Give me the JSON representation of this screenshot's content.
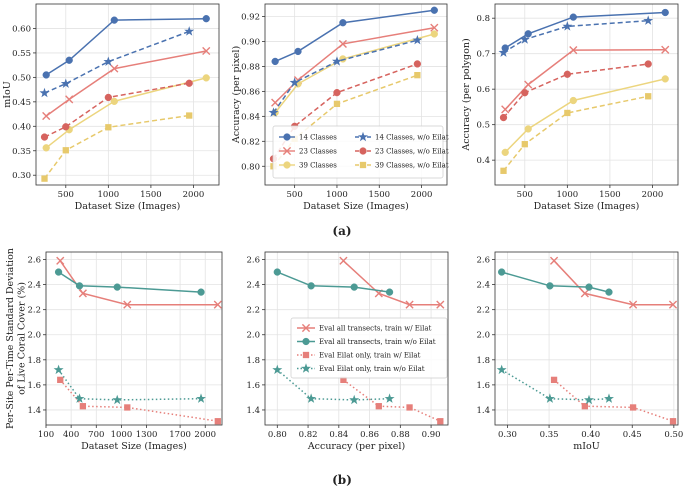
{
  "caption_a": "(a)",
  "caption_b": "(b)",
  "colors": {
    "blue": "#4a72b0",
    "red": "#e67f7a",
    "teal": "#4c9a94",
    "yellow": "#ecd57e",
    "crimson": "#d6635e",
    "gold": "#e7c96b"
  },
  "chart_data": [
    {
      "type": "line",
      "xlabel": "Dataset Size (Images)",
      "ylabel": "mIoU",
      "xlim": [
        150,
        2300
      ],
      "ylim": [
        0.28,
        0.65
      ],
      "xticks": [
        500,
        1000,
        1500,
        2000
      ],
      "yticks": [
        0.3,
        0.35,
        0.4,
        0.45,
        0.5,
        0.55,
        0.6
      ],
      "ytick_labels": [
        "0.30",
        "0.35",
        "0.40",
        "0.45",
        "0.50",
        "0.55",
        "0.60"
      ],
      "series": [
        {
          "name": "14 Classes",
          "color": "blue",
          "marker": "circle",
          "dash": false,
          "x": [
            270,
            540,
            1070,
            2150
          ],
          "y": [
            0.505,
            0.535,
            0.617,
            0.62
          ]
        },
        {
          "name": "23 Classes",
          "color": "red",
          "marker": "x",
          "dash": false,
          "x": [
            270,
            540,
            1070,
            2150
          ],
          "y": [
            0.421,
            0.455,
            0.518,
            0.554
          ]
        },
        {
          "name": "39 Classes",
          "color": "yellow",
          "marker": "circle",
          "dash": false,
          "x": [
            270,
            540,
            1070,
            2150
          ],
          "y": [
            0.356,
            0.393,
            0.451,
            0.499
          ]
        },
        {
          "name": "14 Classes, w/o Eilat",
          "color": "blue",
          "marker": "star",
          "dash": true,
          "x": [
            250,
            500,
            1000,
            1950
          ],
          "y": [
            0.468,
            0.487,
            0.532,
            0.594
          ]
        },
        {
          "name": "23 Classes, w/o Eilat",
          "color": "crimson",
          "marker": "circle",
          "dash": true,
          "x": [
            250,
            500,
            1000,
            1950
          ],
          "y": [
            0.378,
            0.399,
            0.459,
            0.488
          ]
        },
        {
          "name": "39 Classes, w/o Eilat",
          "color": "gold",
          "marker": "square",
          "dash": true,
          "x": [
            250,
            500,
            1000,
            1950
          ],
          "y": [
            0.293,
            0.351,
            0.398,
            0.422
          ]
        }
      ]
    },
    {
      "type": "line",
      "xlabel": "Dataset Size (Images)",
      "ylabel": "Accuracy (per pixel)",
      "xlim": [
        150,
        2300
      ],
      "ylim": [
        0.785,
        0.93
      ],
      "xticks": [
        500,
        1000,
        1500,
        2000
      ],
      "yticks": [
        0.8,
        0.82,
        0.84,
        0.86,
        0.88,
        0.9,
        0.92
      ],
      "ytick_labels": [
        "0.80",
        "0.82",
        "0.84",
        "0.86",
        "0.88",
        "0.90",
        "0.92"
      ],
      "legend": [
        "14 Classes",
        "23 Classes",
        "39 Classes",
        "14 Classes, w/o Eilat",
        "23 Classes, w/o Eilat",
        "39 Classes, w/o Eilat"
      ],
      "series": [
        {
          "name": "14 Classes",
          "color": "blue",
          "marker": "circle",
          "dash": false,
          "x": [
            270,
            540,
            1070,
            2150
          ],
          "y": [
            0.884,
            0.892,
            0.915,
            0.925
          ]
        },
        {
          "name": "23 Classes",
          "color": "red",
          "marker": "x",
          "dash": false,
          "x": [
            270,
            540,
            1070,
            2150
          ],
          "y": [
            0.851,
            0.869,
            0.898,
            0.911
          ]
        },
        {
          "name": "39 Classes",
          "color": "yellow",
          "marker": "circle",
          "dash": false,
          "x": [
            270,
            540,
            1070,
            2150
          ],
          "y": [
            0.843,
            0.866,
            0.886,
            0.906
          ]
        },
        {
          "name": "14 Classes, w/o Eilat",
          "color": "blue",
          "marker": "star",
          "dash": true,
          "x": [
            250,
            500,
            1000,
            1950
          ],
          "y": [
            0.843,
            0.867,
            0.884,
            0.901
          ]
        },
        {
          "name": "23 Classes, w/o Eilat",
          "color": "crimson",
          "marker": "circle",
          "dash": true,
          "x": [
            250,
            500,
            1000,
            1950
          ],
          "y": [
            0.806,
            0.832,
            0.859,
            0.882
          ]
        },
        {
          "name": "39 Classes, w/o Eilat",
          "color": "gold",
          "marker": "square",
          "dash": true,
          "x": [
            250,
            500,
            1000,
            1950
          ],
          "y": [
            0.8,
            0.822,
            0.85,
            0.873
          ]
        }
      ]
    },
    {
      "type": "line",
      "xlabel": "Dataset Size (Images)",
      "ylabel": "Accuracy (per polygon)",
      "xlim": [
        150,
        2300
      ],
      "ylim": [
        0.33,
        0.84
      ],
      "xticks": [
        500,
        1000,
        1500,
        2000
      ],
      "yticks": [
        0.4,
        0.5,
        0.6,
        0.7,
        0.8
      ],
      "ytick_labels": [
        "0.4",
        "0.5",
        "0.6",
        "0.7",
        "0.8"
      ],
      "series": [
        {
          "name": "14 Classes",
          "color": "blue",
          "marker": "circle",
          "dash": false,
          "x": [
            270,
            540,
            1070,
            2150
          ],
          "y": [
            0.716,
            0.756,
            0.803,
            0.816
          ]
        },
        {
          "name": "23 Classes",
          "color": "red",
          "marker": "x",
          "dash": false,
          "x": [
            270,
            540,
            1070,
            2150
          ],
          "y": [
            0.543,
            0.613,
            0.71,
            0.711
          ]
        },
        {
          "name": "39 Classes",
          "color": "yellow",
          "marker": "circle",
          "dash": false,
          "x": [
            270,
            540,
            1070,
            2150
          ],
          "y": [
            0.422,
            0.488,
            0.568,
            0.629
          ]
        },
        {
          "name": "14 Classes, w/o Eilat",
          "color": "blue",
          "marker": "star",
          "dash": true,
          "x": [
            250,
            500,
            1000,
            1950
          ],
          "y": [
            0.703,
            0.74,
            0.777,
            0.793
          ]
        },
        {
          "name": "23 Classes, w/o Eilat",
          "color": "crimson",
          "marker": "circle",
          "dash": true,
          "x": [
            250,
            500,
            1000,
            1950
          ],
          "y": [
            0.52,
            0.59,
            0.642,
            0.671
          ]
        },
        {
          "name": "39 Classes, w/o Eilat",
          "color": "gold",
          "marker": "square",
          "dash": true,
          "x": [
            250,
            500,
            1000,
            1950
          ],
          "y": [
            0.37,
            0.445,
            0.533,
            0.58
          ]
        }
      ]
    },
    {
      "type": "line",
      "xlabel": "Dataset Size (Images)",
      "ylabel": "Per-Site Per-Time Standard Deviation of Live Coral Cover (%)",
      "xlim": [
        100,
        2200
      ],
      "ylim": [
        1.28,
        2.66
      ],
      "xticks": [
        100,
        400,
        700,
        1000,
        1300,
        1700,
        2000
      ],
      "xtick_labels": [
        "100",
        "400",
        "700",
        "1000",
        "1300",
        "1700",
        "2000"
      ],
      "yticks": [
        1.4,
        1.6,
        1.8,
        2.0,
        2.2,
        2.4,
        2.6
      ],
      "ytick_labels": [
        "1.4",
        "1.6",
        "1.8",
        "2.0",
        "2.2",
        "2.4",
        "2.6"
      ],
      "series": [
        {
          "name": "Eval all transects, train w/ Eilat",
          "color": "red",
          "marker": "x",
          "dash": false,
          "x": [
            270,
            540,
            1070,
            2150
          ],
          "y": [
            2.59,
            2.33,
            2.24,
            2.24
          ]
        },
        {
          "name": "Eval all transects, train w/o Eilat",
          "color": "teal",
          "marker": "circle",
          "dash": false,
          "x": [
            250,
            500,
            950,
            1950
          ],
          "y": [
            2.5,
            2.39,
            2.38,
            2.34
          ]
        },
        {
          "name": "Eval Eilat only, train w/ Eilat",
          "color": "red",
          "marker": "square",
          "dash": true,
          "x": [
            270,
            540,
            1070,
            2150
          ],
          "y": [
            1.64,
            1.43,
            1.42,
            1.31
          ]
        },
        {
          "name": "Eval Eilat only, train w/o Eilat",
          "color": "teal",
          "marker": "star",
          "dash": true,
          "x": [
            250,
            500,
            950,
            1950
          ],
          "y": [
            1.72,
            1.49,
            1.48,
            1.49
          ]
        }
      ]
    },
    {
      "type": "line",
      "xlabel": "Accuracy (per pixel)",
      "ylabel": "",
      "xlim": [
        0.792,
        0.911
      ],
      "ylim": [
        1.28,
        2.66
      ],
      "xticks": [
        0.8,
        0.82,
        0.84,
        0.86,
        0.88,
        0.9
      ],
      "xtick_labels": [
        "0.80",
        "0.82",
        "0.84",
        "0.86",
        "0.88",
        "0.90"
      ],
      "yticks": [
        1.4,
        1.6,
        1.8,
        2.0,
        2.2,
        2.4,
        2.6
      ],
      "ytick_labels": [
        "1.4",
        "1.6",
        "1.8",
        "2.0",
        "2.2",
        "2.4",
        "2.6"
      ],
      "legend": [
        "Eval all transects, train w/ Eilat",
        "Eval all transects, train w/o Eilat",
        "Eval Eilat only, train w/ Eilat",
        "Eval Eilat only, train w/o Eilat"
      ],
      "series": [
        {
          "name": "Eval all transects, train w/ Eilat",
          "color": "red",
          "marker": "x",
          "dash": false,
          "x": [
            0.843,
            0.866,
            0.886,
            0.906
          ],
          "y": [
            2.59,
            2.33,
            2.24,
            2.24
          ]
        },
        {
          "name": "Eval all transects, train w/o Eilat",
          "color": "teal",
          "marker": "circle",
          "dash": false,
          "x": [
            0.8,
            0.822,
            0.85,
            0.873
          ],
          "y": [
            2.5,
            2.39,
            2.38,
            2.34
          ]
        },
        {
          "name": "Eval Eilat only, train w/ Eilat",
          "color": "red",
          "marker": "square",
          "dash": true,
          "x": [
            0.843,
            0.866,
            0.886,
            0.906
          ],
          "y": [
            1.64,
            1.43,
            1.42,
            1.31
          ]
        },
        {
          "name": "Eval Eilat only, train w/o Eilat",
          "color": "teal",
          "marker": "star",
          "dash": true,
          "x": [
            0.8,
            0.822,
            0.85,
            0.873
          ],
          "y": [
            1.72,
            1.49,
            1.48,
            1.49
          ]
        }
      ]
    },
    {
      "type": "line",
      "xlabel": "mIoU",
      "ylabel": "",
      "xlim": [
        0.285,
        0.505
      ],
      "ylim": [
        1.28,
        2.66
      ],
      "xticks": [
        0.3,
        0.35,
        0.4,
        0.45,
        0.5
      ],
      "xtick_labels": [
        "0.30",
        "0.35",
        "0.40",
        "0.45",
        "0.50"
      ],
      "yticks": [
        1.4,
        1.6,
        1.8,
        2.0,
        2.2,
        2.4,
        2.6
      ],
      "ytick_labels": [
        "1.4",
        "1.6",
        "1.8",
        "2.0",
        "2.2",
        "2.4",
        "2.6"
      ],
      "series": [
        {
          "name": "Eval all transects, train w/ Eilat",
          "color": "red",
          "marker": "x",
          "dash": false,
          "x": [
            0.356,
            0.393,
            0.451,
            0.499
          ],
          "y": [
            2.59,
            2.33,
            2.24,
            2.24
          ]
        },
        {
          "name": "Eval all transects, train w/o Eilat",
          "color": "teal",
          "marker": "circle",
          "dash": false,
          "x": [
            0.293,
            0.351,
            0.398,
            0.422
          ],
          "y": [
            2.5,
            2.39,
            2.38,
            2.34
          ]
        },
        {
          "name": "Eval Eilat only, train w/ Eilat",
          "color": "red",
          "marker": "square",
          "dash": true,
          "x": [
            0.356,
            0.393,
            0.451,
            0.499
          ],
          "y": [
            1.64,
            1.43,
            1.42,
            1.31
          ]
        },
        {
          "name": "Eval Eilat only, train w/o Eilat",
          "color": "teal",
          "marker": "star",
          "dash": true,
          "x": [
            0.293,
            0.351,
            0.398,
            0.422
          ],
          "y": [
            1.72,
            1.49,
            1.48,
            1.49
          ]
        }
      ]
    }
  ]
}
